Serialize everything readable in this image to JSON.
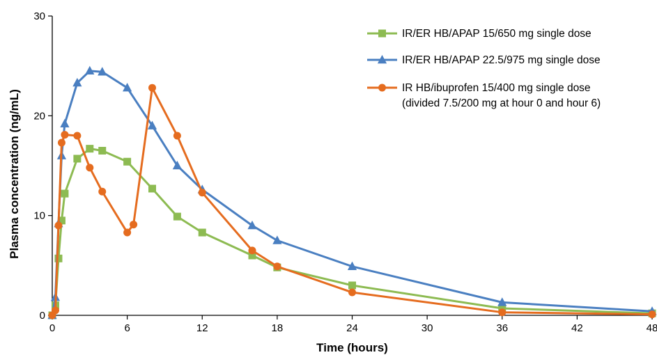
{
  "chart_data": {
    "type": "line",
    "xlabel": "Time (hours)",
    "ylabel": "Plasma concentration (ng/mL)",
    "xlim": [
      0,
      48
    ],
    "ylim": [
      0,
      30
    ],
    "xticks": [
      0,
      6,
      12,
      18,
      24,
      30,
      36,
      42,
      48
    ],
    "yticks": [
      0,
      10,
      20,
      30
    ],
    "grid": false,
    "legend_position": "top-right",
    "series": [
      {
        "name": "IR/ER HB/APAP 15/650 mg single dose",
        "color": "#8DBB52",
        "marker": "square",
        "x": [
          0,
          0.25,
          0.5,
          0.75,
          1,
          2,
          3,
          4,
          6,
          8,
          10,
          12,
          16,
          18,
          24,
          36,
          48
        ],
        "y": [
          0,
          1,
          5.7,
          9.5,
          12.2,
          15.7,
          16.7,
          16.5,
          15.4,
          12.7,
          9.9,
          8.3,
          6,
          4.8,
          3,
          0.7,
          0.2
        ]
      },
      {
        "name": "IR/ER HB/APAP 22.5/975 mg single dose",
        "color": "#4A7FC1",
        "marker": "triangle",
        "x": [
          0,
          0.25,
          0.5,
          0.75,
          1,
          2,
          3,
          4,
          6,
          8,
          10,
          12,
          16,
          18,
          24,
          36,
          48
        ],
        "y": [
          0,
          1.8,
          9.2,
          16,
          19.2,
          23.3,
          24.5,
          24.4,
          22.8,
          19,
          15,
          12.6,
          9,
          7.5,
          4.9,
          1.3,
          0.4
        ]
      },
      {
        "name": "IR HB/ibuprofen 15/400 mg single dose",
        "name_line2": "(divided 7.5/200 mg at hour 0 and hour 6)",
        "color": "#E56C1F",
        "marker": "circle",
        "x": [
          0,
          0.25,
          0.5,
          0.75,
          1,
          2,
          3,
          4,
          6,
          6.5,
          8,
          10,
          12,
          16,
          18,
          24,
          36,
          48
        ],
        "y": [
          0,
          0.5,
          9,
          17.3,
          18.1,
          18,
          14.8,
          12.4,
          8.3,
          9.1,
          22.8,
          18,
          12.3,
          6.5,
          4.9,
          2.3,
          0.3,
          0.1
        ]
      }
    ]
  }
}
